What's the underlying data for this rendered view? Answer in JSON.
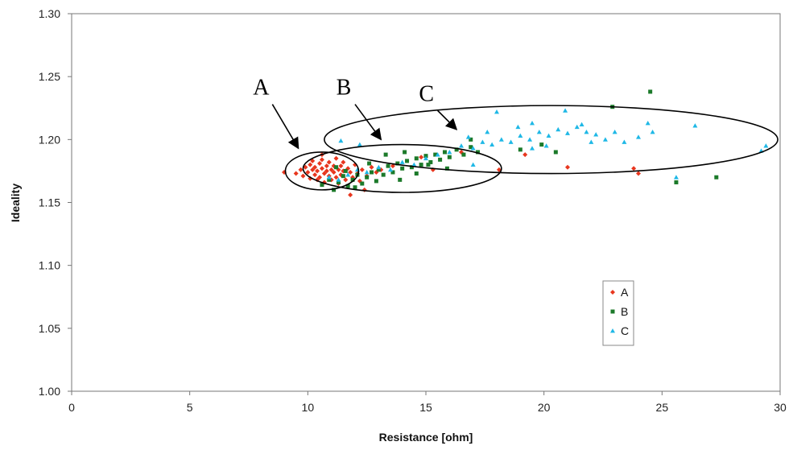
{
  "colors": {
    "A": "#e8361e",
    "B": "#1c7a2a",
    "C": "#1fb8e6"
  },
  "chart_data": {
    "type": "scatter",
    "xlabel": "Resistance [ohm]",
    "ylabel": "Ideality",
    "xlim": [
      0,
      30
    ],
    "ylim": [
      1.0,
      1.3
    ],
    "x_ticks": [
      "0",
      "5",
      "10",
      "15",
      "20",
      "25",
      "30"
    ],
    "y_ticks": [
      "1.00",
      "1.05",
      "1.10",
      "1.15",
      "1.20",
      "1.25",
      "1.30"
    ],
    "grid": false,
    "legend_position": "bottom-right",
    "legend": [
      "A",
      "B",
      "C"
    ],
    "annotations": [
      {
        "text": "A",
        "arrow_from": [
          8.5,
          1.228
        ],
        "arrow_to": [
          9.6,
          1.193
        ],
        "ellipse": {
          "cx": 10.6,
          "cy": 1.175,
          "rx": 1.55,
          "ry": 0.015
        }
      },
      {
        "text": "B",
        "arrow_from": [
          12.0,
          1.228
        ],
        "arrow_to": [
          13.1,
          1.2
        ],
        "ellipse": {
          "cx": 14.0,
          "cy": 1.177,
          "rx": 4.2,
          "ry": 0.019
        }
      },
      {
        "text": "C",
        "arrow_from": [
          15.5,
          1.223
        ],
        "arrow_to": [
          16.3,
          1.208
        ],
        "ellipse": {
          "cx": 20.3,
          "cy": 1.2,
          "rx": 9.6,
          "ry": 0.027
        }
      }
    ],
    "series": [
      {
        "name": "A",
        "marker": "diamond",
        "points": [
          [
            9.5,
            1.173
          ],
          [
            9.7,
            1.176
          ],
          [
            9.8,
            1.171
          ],
          [
            9.9,
            1.178
          ],
          [
            10.0,
            1.174
          ],
          [
            10.1,
            1.18
          ],
          [
            10.1,
            1.169
          ],
          [
            10.2,
            1.176
          ],
          [
            10.2,
            1.183
          ],
          [
            10.3,
            1.172
          ],
          [
            10.3,
            1.178
          ],
          [
            10.4,
            1.168
          ],
          [
            10.4,
            1.175
          ],
          [
            10.5,
            1.181
          ],
          [
            10.5,
            1.17
          ],
          [
            10.6,
            1.177
          ],
          [
            10.6,
            1.184
          ],
          [
            10.7,
            1.173
          ],
          [
            10.7,
            1.166
          ],
          [
            10.8,
            1.179
          ],
          [
            10.8,
            1.175
          ],
          [
            10.9,
            1.171
          ],
          [
            10.9,
            1.182
          ],
          [
            11.0,
            1.176
          ],
          [
            11.0,
            1.168
          ],
          [
            11.1,
            1.179
          ],
          [
            11.1,
            1.174
          ],
          [
            11.2,
            1.17
          ],
          [
            11.2,
            1.185
          ],
          [
            11.3,
            1.176
          ],
          [
            11.3,
            1.165
          ],
          [
            11.4,
            1.179
          ],
          [
            11.4,
            1.172
          ],
          [
            11.5,
            1.175
          ],
          [
            11.5,
            1.182
          ],
          [
            11.6,
            1.168
          ],
          [
            11.7,
            1.177
          ],
          [
            11.8,
            1.174
          ],
          [
            11.9,
            1.17
          ],
          [
            12.0,
            1.18
          ],
          [
            12.1,
            1.173
          ],
          [
            12.2,
            1.167
          ],
          [
            12.3,
            1.176
          ],
          [
            12.5,
            1.171
          ],
          [
            12.7,
            1.178
          ],
          [
            12.9,
            1.174
          ],
          [
            13.1,
            1.176
          ],
          [
            11.8,
            1.156
          ],
          [
            12.4,
            1.16
          ],
          [
            9.0,
            1.174
          ],
          [
            14.8,
            1.186
          ],
          [
            16.5,
            1.19
          ],
          [
            18.1,
            1.176
          ],
          [
            19.2,
            1.188
          ],
          [
            21.0,
            1.178
          ],
          [
            23.8,
            1.177
          ],
          [
            24.0,
            1.173
          ],
          [
            15.3,
            1.176
          ],
          [
            13.6,
            1.179
          ],
          [
            10.6,
            1.188
          ]
        ]
      },
      {
        "name": "B",
        "marker": "square",
        "points": [
          [
            10.6,
            1.164
          ],
          [
            10.9,
            1.168
          ],
          [
            11.1,
            1.16
          ],
          [
            11.3,
            1.166
          ],
          [
            11.5,
            1.171
          ],
          [
            11.7,
            1.163
          ],
          [
            11.9,
            1.168
          ],
          [
            12.1,
            1.172
          ],
          [
            12.3,
            1.165
          ],
          [
            12.5,
            1.17
          ],
          [
            12.7,
            1.174
          ],
          [
            12.9,
            1.167
          ],
          [
            13.0,
            1.176
          ],
          [
            13.2,
            1.172
          ],
          [
            13.4,
            1.179
          ],
          [
            13.6,
            1.174
          ],
          [
            13.8,
            1.181
          ],
          [
            14.0,
            1.177
          ],
          [
            14.2,
            1.183
          ],
          [
            14.4,
            1.178
          ],
          [
            14.6,
            1.185
          ],
          [
            14.8,
            1.18
          ],
          [
            15.0,
            1.187
          ],
          [
            15.2,
            1.182
          ],
          [
            15.4,
            1.188
          ],
          [
            15.6,
            1.184
          ],
          [
            15.8,
            1.19
          ],
          [
            16.0,
            1.186
          ],
          [
            16.3,
            1.192
          ],
          [
            16.6,
            1.188
          ],
          [
            16.9,
            1.194
          ],
          [
            17.2,
            1.19
          ],
          [
            13.3,
            1.188
          ],
          [
            14.1,
            1.19
          ],
          [
            12.6,
            1.181
          ],
          [
            11.6,
            1.175
          ],
          [
            12.0,
            1.162
          ],
          [
            14.6,
            1.173
          ],
          [
            15.9,
            1.177
          ],
          [
            19.0,
            1.192
          ],
          [
            20.5,
            1.19
          ],
          [
            22.9,
            1.226
          ],
          [
            24.5,
            1.238
          ],
          [
            25.6,
            1.166
          ],
          [
            27.3,
            1.17
          ],
          [
            19.9,
            1.196
          ],
          [
            16.9,
            1.2
          ],
          [
            13.9,
            1.168
          ],
          [
            15.1,
            1.18
          ],
          [
            11.2,
            1.178
          ]
        ]
      },
      {
        "name": "C",
        "marker": "triangle",
        "points": [
          [
            10.9,
            1.17
          ],
          [
            11.3,
            1.168
          ],
          [
            11.7,
            1.172
          ],
          [
            12.1,
            1.176
          ],
          [
            12.5,
            1.174
          ],
          [
            13.0,
            1.178
          ],
          [
            13.5,
            1.176
          ],
          [
            14.0,
            1.182
          ],
          [
            14.5,
            1.18
          ],
          [
            15.0,
            1.185
          ],
          [
            15.5,
            1.188
          ],
          [
            16.0,
            1.19
          ],
          [
            16.5,
            1.195
          ],
          [
            17.0,
            1.193
          ],
          [
            17.4,
            1.198
          ],
          [
            17.8,
            1.196
          ],
          [
            18.2,
            1.2
          ],
          [
            18.6,
            1.198
          ],
          [
            19.0,
            1.203
          ],
          [
            19.4,
            1.2
          ],
          [
            19.8,
            1.206
          ],
          [
            20.2,
            1.203
          ],
          [
            20.6,
            1.208
          ],
          [
            21.0,
            1.205
          ],
          [
            21.4,
            1.21
          ],
          [
            21.8,
            1.206
          ],
          [
            22.2,
            1.204
          ],
          [
            22.6,
            1.2
          ],
          [
            23.0,
            1.206
          ],
          [
            23.4,
            1.198
          ],
          [
            24.0,
            1.202
          ],
          [
            24.6,
            1.206
          ],
          [
            18.0,
            1.222
          ],
          [
            20.9,
            1.223
          ],
          [
            19.5,
            1.213
          ],
          [
            17.6,
            1.206
          ],
          [
            16.8,
            1.202
          ],
          [
            20.1,
            1.195
          ],
          [
            21.6,
            1.212
          ],
          [
            18.9,
            1.21
          ],
          [
            22.0,
            1.198
          ],
          [
            24.4,
            1.213
          ],
          [
            26.4,
            1.211
          ],
          [
            25.6,
            1.17
          ],
          [
            29.2,
            1.191
          ],
          [
            29.4,
            1.195
          ],
          [
            12.2,
            1.196
          ],
          [
            11.4,
            1.199
          ],
          [
            17.0,
            1.18
          ],
          [
            19.5,
            1.193
          ]
        ]
      }
    ]
  }
}
